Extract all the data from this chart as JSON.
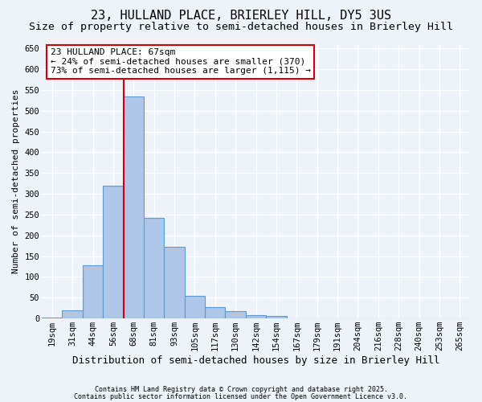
{
  "title_line1": "23, HULLAND PLACE, BRIERLEY HILL, DY5 3US",
  "title_line2": "Size of property relative to semi-detached houses in Brierley Hill",
  "xlabel": "Distribution of semi-detached houses by size in Brierley Hill",
  "ylabel": "Number of semi-detached properties",
  "categories": [
    "19sqm",
    "31sqm",
    "44sqm",
    "56sqm",
    "68sqm",
    "81sqm",
    "93sqm",
    "105sqm",
    "117sqm",
    "130sqm",
    "142sqm",
    "154sqm",
    "167sqm",
    "179sqm",
    "191sqm",
    "204sqm",
    "216sqm",
    "228sqm",
    "240sqm",
    "253sqm",
    "265sqm"
  ],
  "values": [
    3,
    20,
    128,
    320,
    535,
    243,
    172,
    55,
    27,
    17,
    8,
    7,
    0,
    0,
    0,
    0,
    1,
    0,
    0,
    1,
    0
  ],
  "bar_color": "#aec6e8",
  "bar_edge_color": "#5b9bd5",
  "vline_x": 3.5,
  "annotation_text": "23 HULLAND PLACE: 67sqm\n← 24% of semi-detached houses are smaller (370)\n73% of semi-detached houses are larger (1,115) →",
  "annotation_box_color": "#ffffff",
  "annotation_box_edge": "#cc0000",
  "vline_color": "#cc0000",
  "ylim": [
    0,
    660
  ],
  "yticks": [
    0,
    50,
    100,
    150,
    200,
    250,
    300,
    350,
    400,
    450,
    500,
    550,
    600,
    650
  ],
  "footnote1": "Contains HM Land Registry data © Crown copyright and database right 2025.",
  "footnote2": "Contains public sector information licensed under the Open Government Licence v3.0.",
  "background_color": "#eef2f9",
  "grid_color": "#ffffff",
  "title_fontsize": 11,
  "subtitle_fontsize": 9.5,
  "tick_fontsize": 7.5,
  "ylabel_fontsize": 8,
  "xlabel_fontsize": 9,
  "annotation_fontsize": 8,
  "footnote_fontsize": 6
}
